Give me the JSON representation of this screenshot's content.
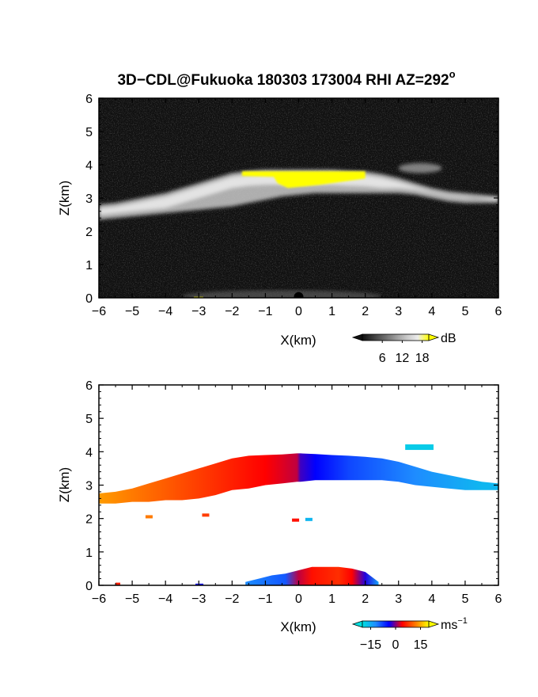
{
  "figure_title": "3D−CDL@Fukuoka 180303 173004 RHI AZ=292",
  "figure_title_sup": "o",
  "chart_data": [
    {
      "type": "heatmap",
      "quantity": "reflectivity",
      "xlabel": "X(km)",
      "ylabel": "Z(km)",
      "xlim": [
        -6,
        6
      ],
      "ylim": [
        0,
        6
      ],
      "xticks": [
        "−6",
        "−5",
        "−4",
        "−3",
        "−2",
        "−1",
        "0",
        "1",
        "2",
        "3",
        "4",
        "5",
        "6"
      ],
      "yticks": [
        "0",
        "1",
        "2",
        "3",
        "4",
        "5",
        "6"
      ],
      "colorbar": {
        "unit": "dB",
        "unit_sup": "",
        "ticks": [
          "6",
          "12",
          "18"
        ],
        "tick_values": [
          6,
          12,
          18
        ],
        "range": [
          0,
          20
        ],
        "colors": [
          "#101010",
          "#3c3c3c",
          "#6a6a6a",
          "#9a9a9a",
          "#c8c8c8",
          "#ececec",
          "#ffff00"
        ]
      },
      "background_color": "#101010",
      "saturation_color": "#ffff00",
      "layer": {
        "x": [
          -6,
          -5.5,
          -5,
          -4.5,
          -4,
          -3.5,
          -3,
          -2.5,
          -2,
          -1.5,
          -1,
          -0.5,
          0,
          0.5,
          1,
          1.5,
          2,
          2.5,
          3,
          3.5,
          4,
          4.5,
          5,
          5.5,
          6
        ],
        "top_km": [
          2.8,
          2.85,
          2.95,
          3.05,
          3.15,
          3.3,
          3.45,
          3.6,
          3.75,
          3.82,
          3.85,
          3.85,
          3.85,
          3.85,
          3.85,
          3.82,
          3.8,
          3.72,
          3.6,
          3.45,
          3.3,
          3.2,
          3.15,
          3.1,
          3.05
        ],
        "bottom_km": [
          2.35,
          2.4,
          2.45,
          2.5,
          2.55,
          2.6,
          2.65,
          2.7,
          2.75,
          2.85,
          2.95,
          3.05,
          3.1,
          3.15,
          3.15,
          3.15,
          3.15,
          3.15,
          3.15,
          3.1,
          3.0,
          2.9,
          2.85,
          2.85,
          2.85
        ],
        "peak_dB": 14
      },
      "saturated_region": {
        "x": [
          -1.7,
          2.0
        ],
        "z": [
          3.3,
          3.85
        ]
      },
      "upper_wisp": {
        "x": [
          3.0,
          4.3
        ],
        "z": [
          3.75,
          4.05
        ]
      },
      "near_ground_echo": {
        "x": [
          -3.5,
          2.5
        ],
        "z": [
          0,
          0.3
        ]
      }
    },
    {
      "type": "heatmap",
      "quantity": "radial_velocity",
      "xlabel": "X(km)",
      "ylabel": "Z(km)",
      "xlim": [
        -6,
        6
      ],
      "ylim": [
        0,
        6
      ],
      "xticks": [
        "−6",
        "−5",
        "−4",
        "−3",
        "−2",
        "−1",
        "0",
        "1",
        "2",
        "3",
        "4",
        "5",
        "6"
      ],
      "yticks": [
        "0",
        "1",
        "2",
        "3",
        "4",
        "5",
        "6"
      ],
      "colorbar": {
        "unit": "ms",
        "unit_sup": "−1",
        "ticks": [
          "−15",
          "0",
          "15"
        ],
        "tick_values": [
          -15,
          0,
          15
        ],
        "range": [
          -20,
          20
        ],
        "colors": [
          "#00e0e0",
          "#1e8cff",
          "#0000ff",
          "#ff0000",
          "#ff7a00",
          "#ffff00"
        ]
      },
      "background_color": "#ffffff",
      "layer": {
        "x": [
          -6,
          -5.5,
          -5,
          -4.5,
          -4,
          -3.5,
          -3,
          -2.5,
          -2,
          -1.5,
          -1,
          -0.5,
          -0.05,
          0.05,
          0.5,
          1,
          1.5,
          2,
          2.5,
          3,
          3.5,
          4,
          4.5,
          5,
          5.5,
          6
        ],
        "top_km": [
          2.75,
          2.8,
          2.9,
          3.05,
          3.2,
          3.35,
          3.5,
          3.65,
          3.8,
          3.88,
          3.9,
          3.92,
          3.95,
          3.95,
          3.93,
          3.9,
          3.88,
          3.85,
          3.8,
          3.7,
          3.55,
          3.4,
          3.3,
          3.2,
          3.1,
          3.05
        ],
        "bottom_km": [
          2.45,
          2.45,
          2.5,
          2.5,
          2.55,
          2.55,
          2.6,
          2.7,
          2.85,
          2.9,
          3.0,
          3.05,
          3.1,
          3.1,
          3.15,
          3.15,
          3.15,
          3.15,
          3.15,
          3.1,
          3.0,
          2.95,
          2.9,
          2.85,
          2.85,
          2.85
        ],
        "velocity_ms": [
          14,
          13,
          12,
          11,
          10,
          9,
          8,
          7,
          6,
          5,
          4,
          3,
          2,
          -2,
          -4,
          -6,
          -8,
          -9,
          -10,
          -11,
          -12,
          -13,
          -14,
          -15,
          -16,
          -16
        ]
      },
      "low_level_echo": {
        "x": [
          -1.6,
          -1.2,
          -0.8,
          -0.4,
          0,
          0.4,
          0.8,
          1.2,
          1.6,
          2.0,
          2.4
        ],
        "top_km": [
          0.1,
          0.2,
          0.3,
          0.35,
          0.45,
          0.55,
          0.55,
          0.55,
          0.5,
          0.4,
          0.1
        ],
        "velocity_ms": [
          -12,
          -11,
          -10,
          -9,
          2,
          5,
          6,
          7,
          4,
          -3,
          -14
        ]
      }
    }
  ]
}
